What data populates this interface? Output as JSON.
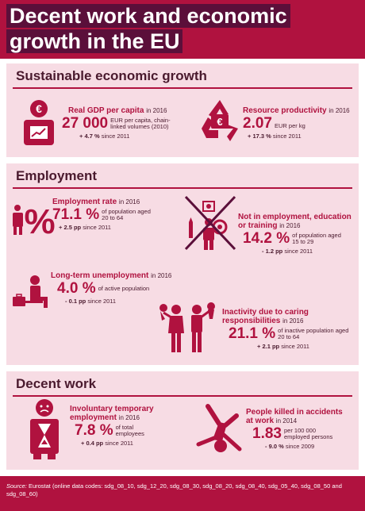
{
  "title": {
    "line1": "Decent work and economic",
    "line2": "growth in the EU"
  },
  "colors": {
    "accent": "#b0123f",
    "dark": "#5b0f3a",
    "panel": "#f7dce4"
  },
  "sections": {
    "economic": {
      "title": "Sustainable economic growth",
      "gdp": {
        "label": "Real GDP per capita",
        "year": "in 2016",
        "value": "27 000",
        "unit": "EUR per capita, chain-linked volumes (2010)",
        "change": "+ 4.7 %",
        "since": "since 2011",
        "icon": "person-euro-chart-icon"
      },
      "resource": {
        "label": "Resource productivity",
        "year": "in 2016",
        "value": "2.07",
        "unit": "EUR per kg",
        "change": "+ 17.3 %",
        "since": "since 2011",
        "icon": "recycle-euro-icon"
      }
    },
    "employment": {
      "title": "Employment",
      "rate": {
        "label": "Employment rate",
        "year": "in 2016",
        "value": "71.1 %",
        "unit": "of population aged 20 to 64",
        "change": "+ 2.5 pp",
        "since": "since 2011",
        "icon": "workers-percent-icon"
      },
      "neet": {
        "label": "Not in employment, education or training",
        "year": "in 2016",
        "value": "14.2 %",
        "unit": "of population aged 15 to 29",
        "change": "- 1.2 pp",
        "since": "since 2011",
        "icon": "neet-crossed-icon"
      },
      "longterm": {
        "label": "Long-term unemployment",
        "year": "in 2016",
        "value": "4.0 %",
        "unit": "of active population",
        "change": "- 0.1 pp",
        "since": "since 2011",
        "icon": "seated-briefcase-icon"
      },
      "inactivity": {
        "label": "Inactivity due to caring responsibilities",
        "year": "in 2016",
        "value": "21.1 %",
        "unit": "of inactive population aged 20 to 64",
        "change": "+ 2.1 pp",
        "since": "since 2011",
        "icon": "carers-children-icon"
      }
    },
    "decent": {
      "title": "Decent work",
      "temporary": {
        "label": "Involuntary temporary employment",
        "year": "in 2016",
        "value": "7.8 %",
        "unit": "of total employees",
        "change": "+ 0.4 pp",
        "since": "since 2011",
        "icon": "sad-hourglass-icon"
      },
      "accidents": {
        "label": "People killed in accidents at work",
        "year": "in 2014",
        "value": "1.83",
        "unit": "per 100 000 employed persons",
        "change": "- 9.0 %",
        "since": "since 2009",
        "icon": "falling-person-icon"
      }
    }
  },
  "footer": {
    "source_label": "Source:",
    "source_text": "Eurostat (online data codes: sdg_08_10, sdg_12_20, sdg_08_30, sdg_08_20, sdg_08_40, sdg_05_40, sdg_08_50 and sdg_08_60)"
  }
}
